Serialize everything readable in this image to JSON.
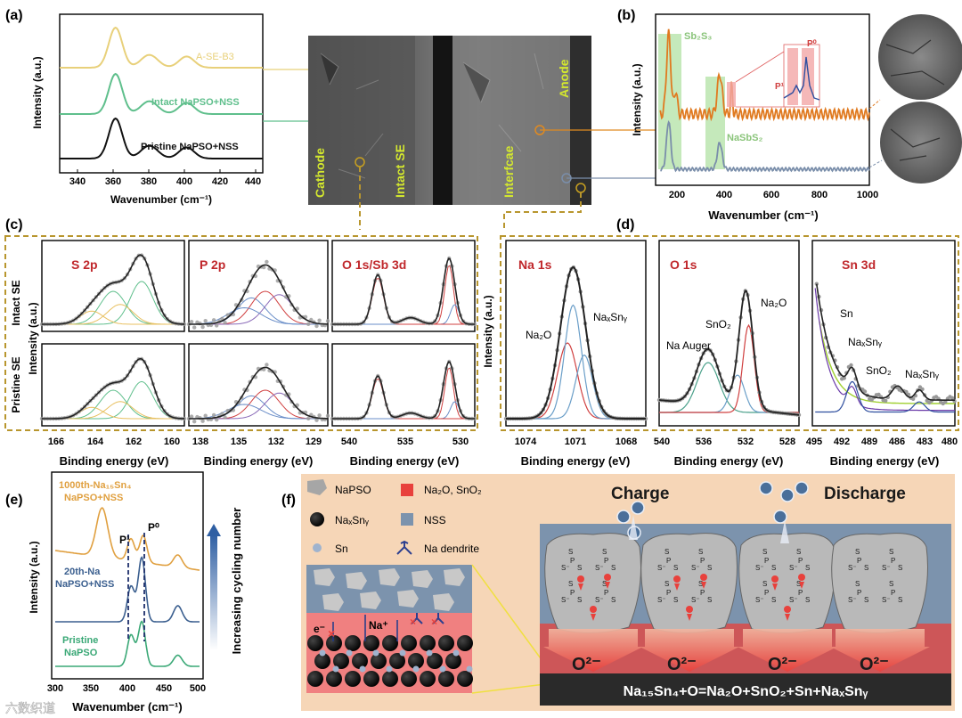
{
  "labels": {
    "a": "(a)",
    "b": "(b)",
    "c": "(c)",
    "d": "(d)",
    "e": "(e)",
    "f": "(f)"
  },
  "panel_a": {
    "ylabel": "Intensity (a.u.)",
    "xlabel": "Wavenumber (cm⁻¹)",
    "ticks": [
      "340",
      "360",
      "380",
      "400",
      "420",
      "440"
    ],
    "series": [
      {
        "name": "A-SE-B3",
        "color": "#e8d07a"
      },
      {
        "name": "Intact NaPSO+NSS",
        "color": "#5fbf8c"
      },
      {
        "name": "Pristine NaPSO+NSS",
        "color": "#111111"
      }
    ],
    "chart_data": {
      "type": "line",
      "title": "",
      "xlabel": "Wavenumber (cm-1)",
      "ylabel": "Intensity (a.u.)",
      "xlim": [
        330,
        450
      ],
      "series": [
        {
          "name": "A-SE-B3",
          "peaks": [
            363,
            383,
            405
          ]
        },
        {
          "name": "Intact NaPSO+NSS",
          "peaks": [
            363,
            383,
            405
          ]
        },
        {
          "name": "Pristine NaPSO+NSS",
          "peaks": [
            363,
            383,
            405
          ]
        }
      ]
    }
  },
  "sem": {
    "cathode": "Cathode",
    "intact": "Intact SE",
    "interface": "Interfcae",
    "anode": "Anode"
  },
  "panel_b": {
    "ylabel": "Intensity (a.u.)",
    "xlabel": "Wavenumber (cm⁻¹)",
    "ticks": [
      "200",
      "400",
      "600",
      "800",
      "1000"
    ],
    "ann_sb2s3": "Sb₂S₃",
    "ann_nasbs2": "NaSbS₂",
    "ann_p0": "P⁰",
    "ann_p1": "P¹",
    "chart_data": {
      "type": "line",
      "xlabel": "Wavenumber (cm-1)",
      "ylabel": "Intensity (a.u.)",
      "xlim": [
        100,
        1000
      ],
      "highlight_bands": [
        [
          130,
          190
        ],
        [
          300,
          390
        ]
      ],
      "series": [
        {
          "name": "Interface (orange)",
          "peaks": [
            155,
            370,
            420
          ]
        },
        {
          "name": "Intact SE (grey)",
          "peaks": [
            155,
            370
          ]
        }
      ]
    }
  },
  "panel_c": {
    "ylabel": "Intensity (a.u.)",
    "row_intact": "Intact SE",
    "row_pristine": "Pristine SE",
    "titles": [
      "S 2p",
      "P 2p",
      "O 1s/Sb 3d"
    ],
    "xlabel": "Binding energy (eV)",
    "ticks_s": [
      "166",
      "164",
      "162",
      "160"
    ],
    "ticks_p": [
      "138",
      "135",
      "132",
      "129"
    ],
    "ticks_o": [
      "540",
      "535",
      "530"
    ]
  },
  "panel_d": {
    "ylabel": "Intensity (a.u.)",
    "xlabel": "Binding energy (eV)",
    "titles": [
      "Na 1s",
      "O 1s",
      "Sn 3d"
    ],
    "na_ticks": [
      "1074",
      "1071",
      "1068"
    ],
    "o_ticks": [
      "540",
      "536",
      "532",
      "528"
    ],
    "sn_ticks": [
      "495",
      "492",
      "489",
      "486",
      "483",
      "480"
    ],
    "na_ann": [
      "Na₂O",
      "NaₓSnᵧ"
    ],
    "o_ann": [
      "Na Auger",
      "SnO₂",
      "Na₂O"
    ],
    "sn_ann": [
      "Sn",
      "NaₓSnᵧ",
      "SnO₂",
      "NaₓSnᵧ"
    ]
  },
  "panel_e": {
    "ylabel": "Intensity (a.u.)",
    "xlabel": "Wavenumber (cm⁻¹)",
    "ticks": [
      "300",
      "350",
      "400",
      "450",
      "500"
    ],
    "arrow_label": "Increasing cycling number",
    "p1": "P¹",
    "p0": "P⁰",
    "series": [
      {
        "name": "1000th-Na₁₅Sn₄ NaPSO+NSS",
        "line1": "1000th-Na₁₅Sn₄",
        "line2": "NaPSO+NSS"
      },
      {
        "name": "20th-Na NaPSO+NSS",
        "line1": "20th-Na",
        "line2": "NaPSO+NSS"
      },
      {
        "name": "Pristine NaPSO",
        "line1": "Pristine",
        "line2": "NaPSO"
      }
    ],
    "chart_data": {
      "type": "line",
      "xlim": [
        300,
        500
      ],
      "xlabel": "Wavenumber (cm-1)",
      "ylabel": "Intensity (a.u.)",
      "series": [
        {
          "name": "1000th-Na15Sn4 NaPSO+NSS",
          "peaks": [
            365,
            405,
            422,
            470
          ]
        },
        {
          "name": "20th-Na NaPSO+NSS",
          "peaks": [
            405,
            420,
            470
          ]
        },
        {
          "name": "Pristine NaPSO",
          "peaks": [
            405,
            420,
            470
          ]
        }
      ]
    }
  },
  "panel_f": {
    "legend": {
      "napso": "NaPSO",
      "na2o": "Na₂O, SnO₂",
      "naxsny": "NaₓSnᵧ",
      "nss": "NSS",
      "sn": "Sn",
      "dendrite": "Na dendrite"
    },
    "charge": "Charge",
    "discharge": "Discharge",
    "o2": "O²⁻",
    "eq": "Na₁₅Sn₄+O=Na₂O+SnO₂+Sn+NaₓSnᵧ",
    "e": "e⁻",
    "na": "Na⁺",
    "colors": {
      "bg": "#f6d6b7",
      "panel": "#7c93ad",
      "red": "#e8413c"
    }
  },
  "watermark": "六数织道"
}
